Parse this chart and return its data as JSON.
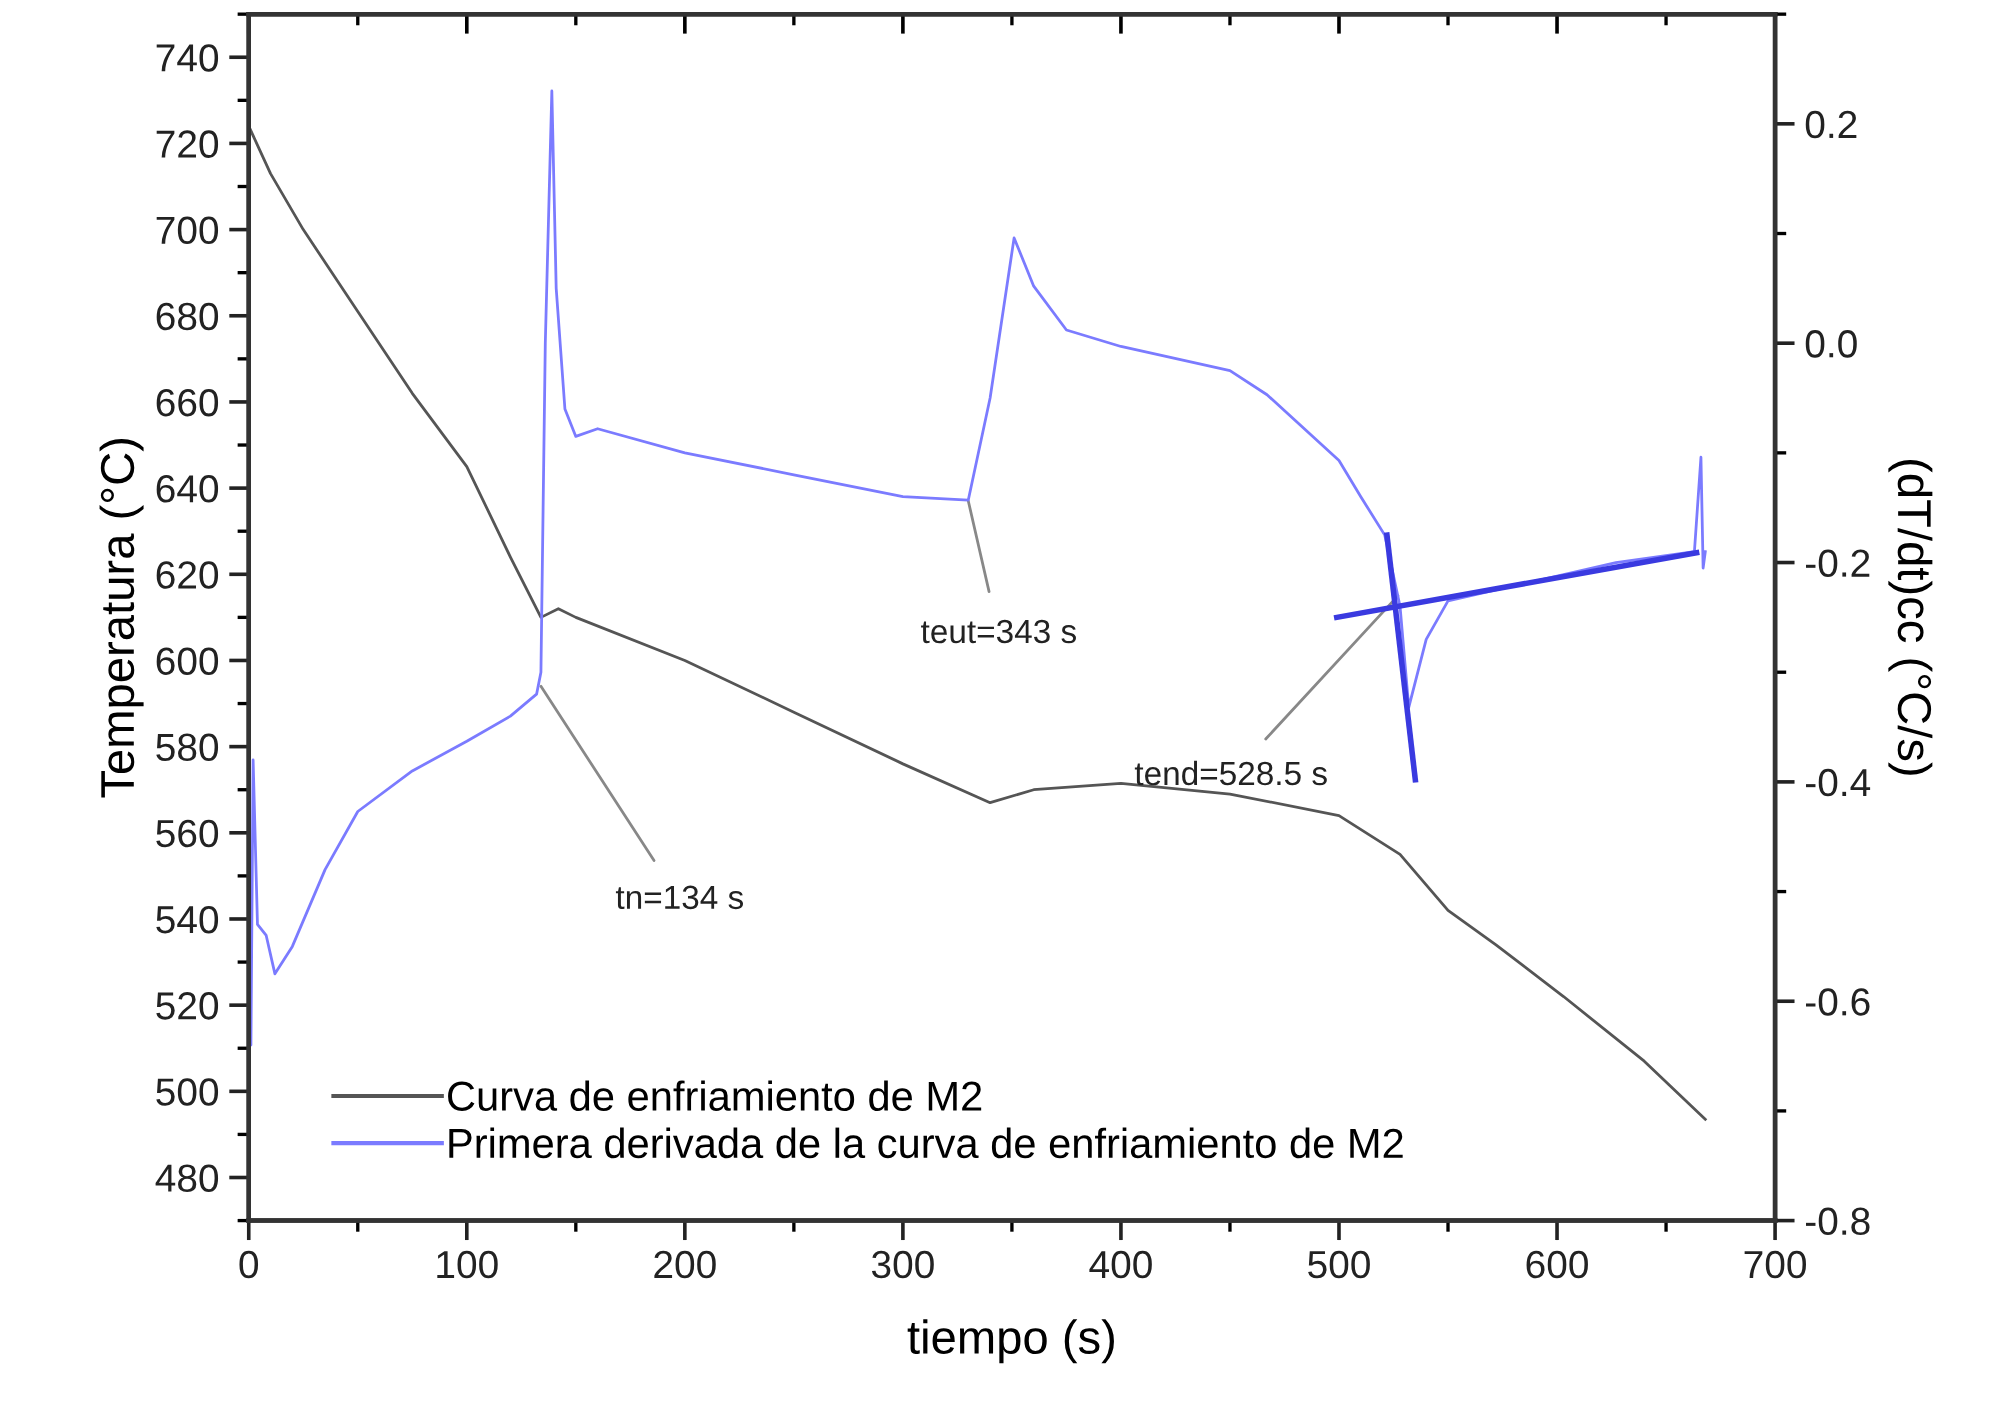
{
  "chart_data": {
    "type": "line",
    "xlabel": "tiempo (s)",
    "ylabel": "Temperatura (°C)",
    "y2label": "(dT/dt)cc (°C/s)",
    "xlim": [
      0,
      700
    ],
    "xticks": [
      0,
      100,
      200,
      300,
      400,
      500,
      600,
      700
    ],
    "ylim": [
      470,
      750
    ],
    "yticks": [
      480,
      500,
      520,
      540,
      560,
      580,
      600,
      620,
      640,
      660,
      680,
      700,
      720,
      740
    ],
    "y2lim": [
      -0.8,
      0.3
    ],
    "y2ticks": [
      -0.8,
      -0.6,
      -0.4,
      -0.2,
      {
        "value": 0,
        "label": "0.0"
      },
      0.2
    ],
    "grid": false,
    "legend": "bottom left",
    "marker": "none",
    "line_style": "solid",
    "series": [
      {
        "name": "Curva de enfriamiento de M2",
        "color": "#555555",
        "x": [
          0,
          10,
          25,
          50,
          75,
          100,
          120,
          134,
          142,
          150,
          200,
          250,
          300,
          340,
          360,
          400,
          450,
          500,
          528,
          550,
          572,
          603,
          640,
          668
        ],
        "values": [
          724,
          713,
          700,
          681,
          662,
          645,
          624,
          610,
          612,
          610,
          600,
          588,
          576,
          567,
          570,
          571.5,
          569,
          564,
          555,
          542,
          534,
          522,
          507,
          493.5
        ]
      },
      {
        "name": "Primera derivada de la curva de enfriamiento de M2",
        "color": "#7b7bff",
        "axis": "y2",
        "x": [
          0,
          1,
          2,
          4,
          8,
          12,
          20,
          35,
          50,
          75,
          100,
          120,
          132,
          134,
          136,
          139,
          141,
          145,
          150,
          160,
          200,
          250,
          300,
          330,
          340,
          351,
          360,
          375,
          400,
          450,
          467,
          500,
          510,
          521,
          528,
          532,
          540,
          550,
          583,
          627,
          663,
          666,
          667,
          668
        ],
        "values": [
          -0.55,
          -0.64,
          -0.38,
          -0.53,
          -0.54,
          -0.575,
          -0.55,
          -0.48,
          -0.427,
          -0.39,
          -0.363,
          -0.34,
          -0.32,
          -0.3,
          0.0,
          0.23,
          0.05,
          -0.06,
          -0.085,
          -0.078,
          -0.1,
          -0.12,
          -0.14,
          -0.143,
          -0.05,
          0.096,
          0.052,
          0.012,
          -0.003,
          -0.025,
          -0.047,
          -0.107,
          -0.14,
          -0.175,
          -0.24,
          -0.332,
          -0.27,
          -0.235,
          -0.22,
          -0.2,
          -0.19,
          -0.104,
          -0.205,
          -0.19
        ]
      },
      {
        "color": "#3a3ae0",
        "axis": "y2",
        "x": [
          499,
          664
        ],
        "values": [
          -0.25,
          -0.191
        ]
      },
      {
        "color": "#3a3ae0",
        "axis": "y2",
        "x": [
          522,
          535
        ],
        "values": [
          -0.175,
          -0.398
        ]
      }
    ],
    "annotations": [
      {
        "text": "tn=134 s",
        "x": 134,
        "y": 594
      },
      {
        "text": "teut=343 s",
        "x": 330,
        "y": 637
      },
      {
        "text": "tend=528.5 s",
        "x": 527,
        "y": 615
      }
    ]
  }
}
